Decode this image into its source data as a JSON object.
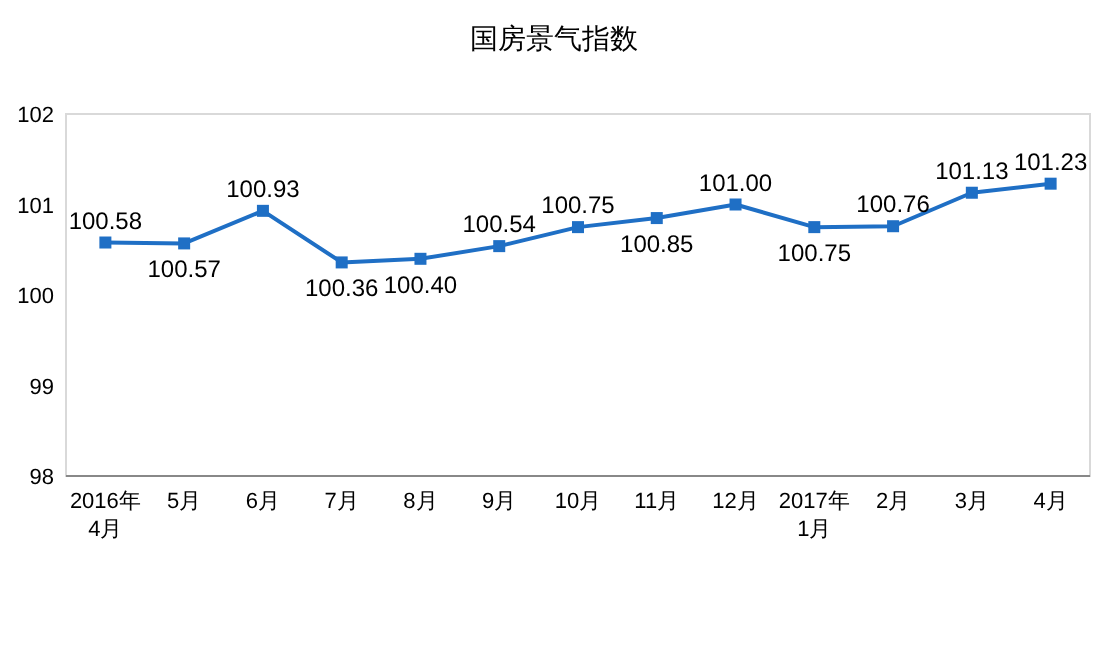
{
  "chart_data": {
    "type": "line",
    "title": "国房景气指数",
    "categories": [
      "2016年\n4月",
      "5月",
      "6月",
      "7月",
      "8月",
      "9月",
      "10月",
      "11月",
      "12月",
      "2017年\n1月",
      "2月",
      "3月",
      "4月"
    ],
    "series": [
      {
        "color": "#1f6fc5",
        "values": [
          100.58,
          100.57,
          100.93,
          100.36,
          100.4,
          100.54,
          100.75,
          100.85,
          101.0,
          100.75,
          100.76,
          101.13,
          101.23
        ],
        "value_labels": [
          "100.58",
          "100.57",
          "100.93",
          "100.36",
          "100.40",
          "100.54",
          "100.75",
          "100.85",
          "101.00",
          "100.75",
          "100.76",
          "101.13",
          "101.23"
        ]
      }
    ],
    "ylim": [
      98,
      102
    ],
    "yticks": [
      98,
      99,
      100,
      101,
      102
    ],
    "grid": false,
    "marker": "square",
    "line_style": "solid"
  }
}
